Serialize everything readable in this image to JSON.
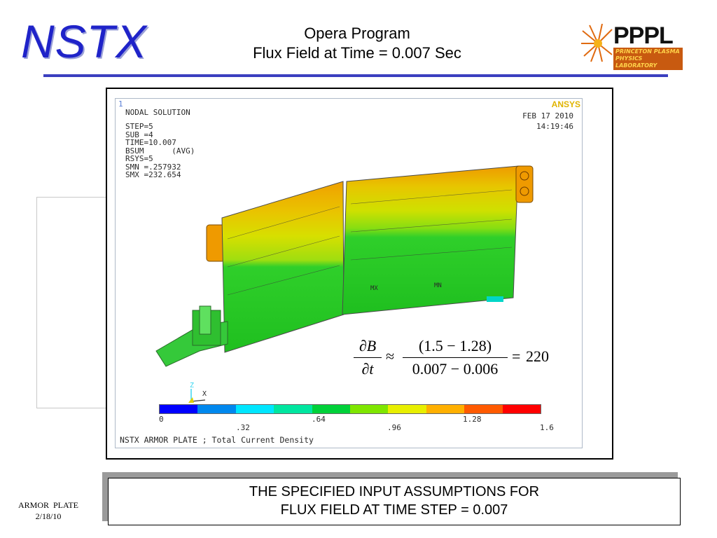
{
  "header": {
    "logo_text": "NSTX",
    "title_line1": "Opera Program",
    "title_line2": "Flux Field at Time = 0.007 Sec",
    "pppl_logo": "PPPL",
    "pppl_logo_sub": "PRINCETON PLASMA PHYSICS LABORATORY"
  },
  "plot": {
    "window_number": "1",
    "vendor_logo": "ANSYS",
    "solution_type": "NODAL SOLUTION",
    "params": [
      "STEP=5",
      "SUB =4",
      "TIME=10.007",
      "BSUM      (AVG)",
      "RSYS=5",
      "SMN =.257932",
      "SMX =232.654"
    ],
    "date": "FEB 17 2010",
    "time": "14:19:46",
    "mn_label": "MN",
    "mx_label": "MX",
    "axis_z": "Z",
    "axis_x": "X",
    "colorbar": {
      "colors": [
        "#0000ff",
        "#0088ee",
        "#00e6ff",
        "#00e6a0",
        "#00d13a",
        "#7fe600",
        "#e8ef00",
        "#ffb000",
        "#ff5a00",
        "#ff0000"
      ],
      "labels_top": [
        "0",
        ".64",
        "1.28"
      ],
      "labels_bottom": [
        ".32",
        ".96",
        "1.6"
      ]
    },
    "footer_title": "NSTX ARMOR PLATE ; Total Current Density"
  },
  "equation": {
    "numer_left": "∂B",
    "denom_left": "∂t",
    "approx": "≈",
    "numer_right": "(1.5 − 1.28)",
    "denom_right": "0.007 − 0.006",
    "equals": "=",
    "result": "220"
  },
  "caption": {
    "line1": "THE SPECIFIED INPUT ASSUMPTIONS FOR",
    "line2": "FLUX FIELD AT TIME STEP = 0.007"
  },
  "footer": {
    "line1": "ARMOR  PLATE",
    "line2": "2/18/10"
  }
}
